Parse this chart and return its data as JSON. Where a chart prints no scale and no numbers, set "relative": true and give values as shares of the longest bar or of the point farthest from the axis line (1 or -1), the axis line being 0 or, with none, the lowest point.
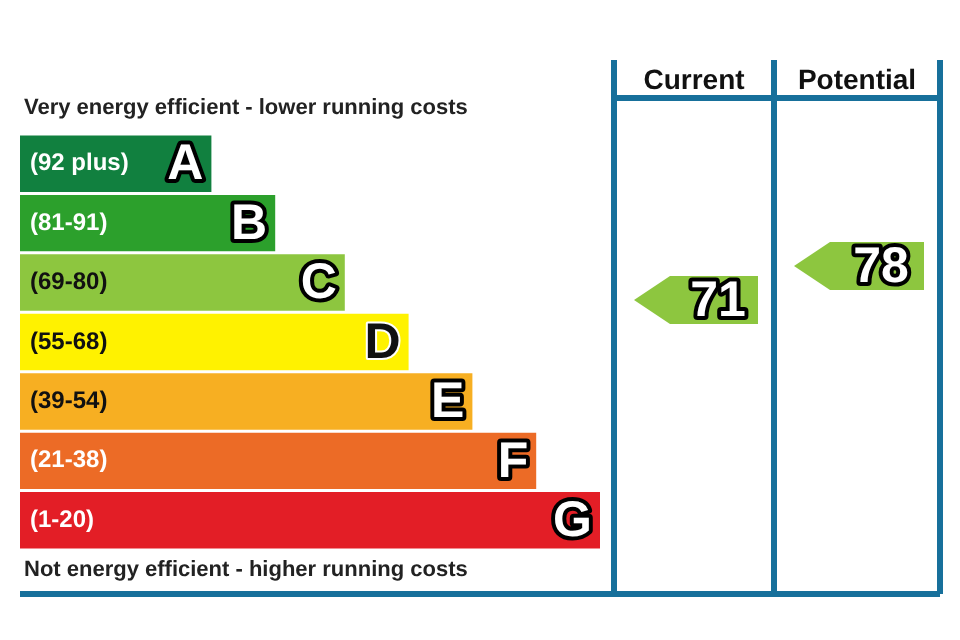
{
  "chart_data": {
    "type": "bar",
    "orientation": "horizontal",
    "relative": true,
    "title": "Very energy efficient - lower running costs",
    "categories": [
      "A",
      "B",
      "C",
      "D",
      "E",
      "F",
      "G"
    ],
    "values": [
      0.33,
      0.44,
      0.56,
      0.67,
      0.78,
      0.89,
      1
    ],
    "colors": [
      "#11803f",
      "#2ca02c",
      "#8dc63f",
      "#fff200",
      "#f7af22",
      "#ec6b26",
      "#e31e26"
    ],
    "annotations": [
      "Not energy efficient - higher running costs",
      "Current",
      "Potential",
      "71",
      "78",
      "(92 plus)",
      "(81-91)",
      "(69-80)",
      "(55-68)",
      "(39-54)",
      "(21-38)",
      "(1-20)"
    ]
  }
}
